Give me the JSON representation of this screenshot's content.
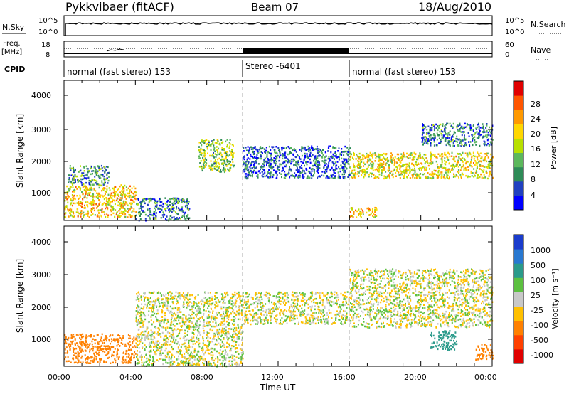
{
  "header": {
    "station": "Pykkvibaer (fitACF)",
    "beam": "Beam 07",
    "date": "18/Aug/2010"
  },
  "noise_panel": {
    "left_label": "N.Sky",
    "right_label": "N.Search",
    "left_ticks": [
      "10^5",
      "10^0"
    ],
    "right_ticks": [
      "10^5",
      "10^0"
    ]
  },
  "freq_panel": {
    "left_label_line1": "Freq.",
    "left_label_line2": "[MHz]",
    "left_ticks": [
      "18",
      "8"
    ],
    "right_label": "Nave",
    "right_ticks": [
      "60",
      "0"
    ]
  },
  "cpid": {
    "label": "CPID",
    "segments": [
      "normal (fast stereo) 153",
      "Stereo -6401",
      "normal (fast stereo) 153"
    ]
  },
  "power_panel": {
    "ylabel": "Slant Range [km]",
    "yticks": [
      "4000",
      "3000",
      "2000",
      "1000"
    ],
    "colorbar_label": "Power [dB]",
    "colorbar_ticks": [
      "28",
      "24",
      "20",
      "16",
      "12",
      "8",
      "4"
    ],
    "colors": [
      "#0000ff",
      "#2040c0",
      "#2e8b57",
      "#5cb85c",
      "#b8e000",
      "#ffd700",
      "#ff9900",
      "#ff5500",
      "#e00000"
    ]
  },
  "velocity_panel": {
    "ylabel": "Slant Range [km]",
    "yticks": [
      "4000",
      "3000",
      "2000",
      "1000"
    ],
    "colorbar_label": "Velocity [m s⁻¹]",
    "colorbar_ticks": [
      "1000",
      "500",
      "100",
      "25",
      "-25",
      "-100",
      "-500",
      "-1000"
    ],
    "colors": [
      "#1a3ccc",
      "#2878d0",
      "#2a9a8a",
      "#5cc040",
      "#c8c8c8",
      "#ffc000",
      "#ff8000",
      "#ff4000",
      "#e00000"
    ]
  },
  "xaxis": {
    "label": "Time UT",
    "ticks": [
      "00:00",
      "04:00",
      "08:00",
      "12:00",
      "16:00",
      "20:00",
      "00:00"
    ]
  },
  "chart_data": {
    "type": "heatmap",
    "title": "Pykkvibaer (fitACF)  Beam 07  18/Aug/2010",
    "xlabel": "Time UT",
    "ylabel": "Slant Range [km]",
    "xlim_hours": [
      0,
      24
    ],
    "ylim_km": [
      180,
      4500
    ],
    "grid": false,
    "mode_switch_hours": [
      10,
      16
    ],
    "power_scatter_regions": [
      {
        "t": [
          0,
          4
        ],
        "range_km": [
          300,
          1300
        ],
        "power_db": 20
      },
      {
        "t": [
          0.2,
          2.5
        ],
        "range_km": [
          1300,
          1900
        ],
        "power_db": 10
      },
      {
        "t": [
          4,
          7
        ],
        "range_km": [
          200,
          900
        ],
        "power_db": 8
      },
      {
        "t": [
          7.5,
          9.5
        ],
        "range_km": [
          1700,
          2700
        ],
        "power_db": 14
      },
      {
        "t": [
          10,
          16
        ],
        "range_km": [
          1500,
          2500
        ],
        "power_db": 6
      },
      {
        "t": [
          16,
          24
        ],
        "range_km": [
          1500,
          2300
        ],
        "power_db": 18
      },
      {
        "t": [
          16,
          17.5
        ],
        "range_km": [
          300,
          600
        ],
        "power_db": 20
      },
      {
        "t": [
          20,
          24
        ],
        "range_km": [
          2500,
          3200
        ],
        "power_db": 8
      }
    ],
    "velocity_scatter_regions": [
      {
        "t": [
          0,
          4
        ],
        "range_km": [
          300,
          1200
        ],
        "velocity_ms": -300
      },
      {
        "t": [
          4,
          10
        ],
        "range_km": [
          200,
          2500
        ],
        "velocity_ms": 0
      },
      {
        "t": [
          10,
          16
        ],
        "range_km": [
          1500,
          2500
        ],
        "velocity_ms": 0
      },
      {
        "t": [
          16,
          24
        ],
        "range_km": [
          1400,
          3200
        ],
        "velocity_ms": 0
      },
      {
        "t": [
          20.5,
          22
        ],
        "range_km": [
          700,
          1300
        ],
        "velocity_ms": 400
      },
      {
        "t": [
          23,
          24
        ],
        "range_km": [
          400,
          900
        ],
        "velocity_ms": -400
      }
    ]
  }
}
